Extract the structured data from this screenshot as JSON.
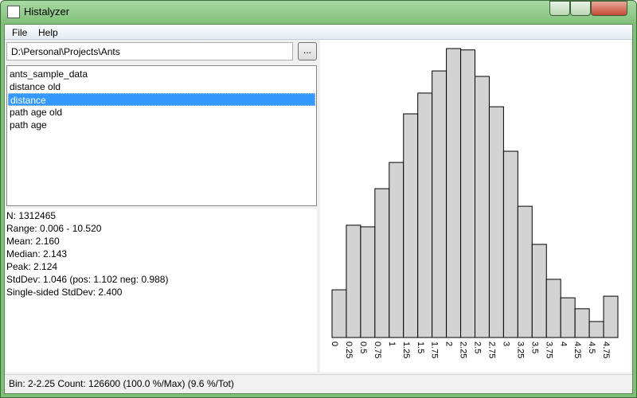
{
  "window": {
    "title": "Histalyzer"
  },
  "menu": [
    "File",
    "Help"
  ],
  "path": "D:\\Personal\\Projects\\Ants",
  "browse_button": "...",
  "list": {
    "items": [
      "ants_sample_data",
      "distance old",
      "distance",
      "path age old",
      "path age"
    ],
    "selected": 2
  },
  "stats": [
    "N: 1312465",
    "Range: 0.006 - 10.520",
    "Mean: 2.160",
    "Median: 2.143",
    "Peak: 2.124",
    "StdDev: 1.046 (pos: 1.102 neg: 0.988)",
    "Single-sided StdDev: 2.400"
  ],
  "status": "Bin: 2-2.25 Count: 126600 (100.0 %/Max) (9.6 %/Tot)",
  "chart_data": {
    "type": "histogram",
    "bins": [
      0,
      0.25,
      0.5,
      0.75,
      1,
      1.25,
      1.5,
      1.75,
      2,
      2.25,
      2.5,
      2.75,
      3,
      3.25,
      3.5,
      3.75,
      4,
      4.25,
      4.5,
      4.75,
      5
    ],
    "counts": [
      20900,
      49200,
      48500,
      65200,
      76700,
      98000,
      107100,
      116800,
      126600,
      126000,
      114400,
      101100,
      81600,
      57500,
      40800,
      25500,
      17400,
      12600,
      7000,
      18100
    ],
    "xticks": [
      0,
      0.25,
      0.5,
      0.75,
      1,
      1.25,
      1.5,
      1.75,
      2,
      2.25,
      2.5,
      2.75,
      3,
      3.25,
      3.5,
      3.75,
      4,
      4.25,
      4.5,
      4.75
    ],
    "xlim": [
      0,
      5
    ],
    "ylim": [
      0,
      126600
    ],
    "color": "#d3d3d3"
  }
}
